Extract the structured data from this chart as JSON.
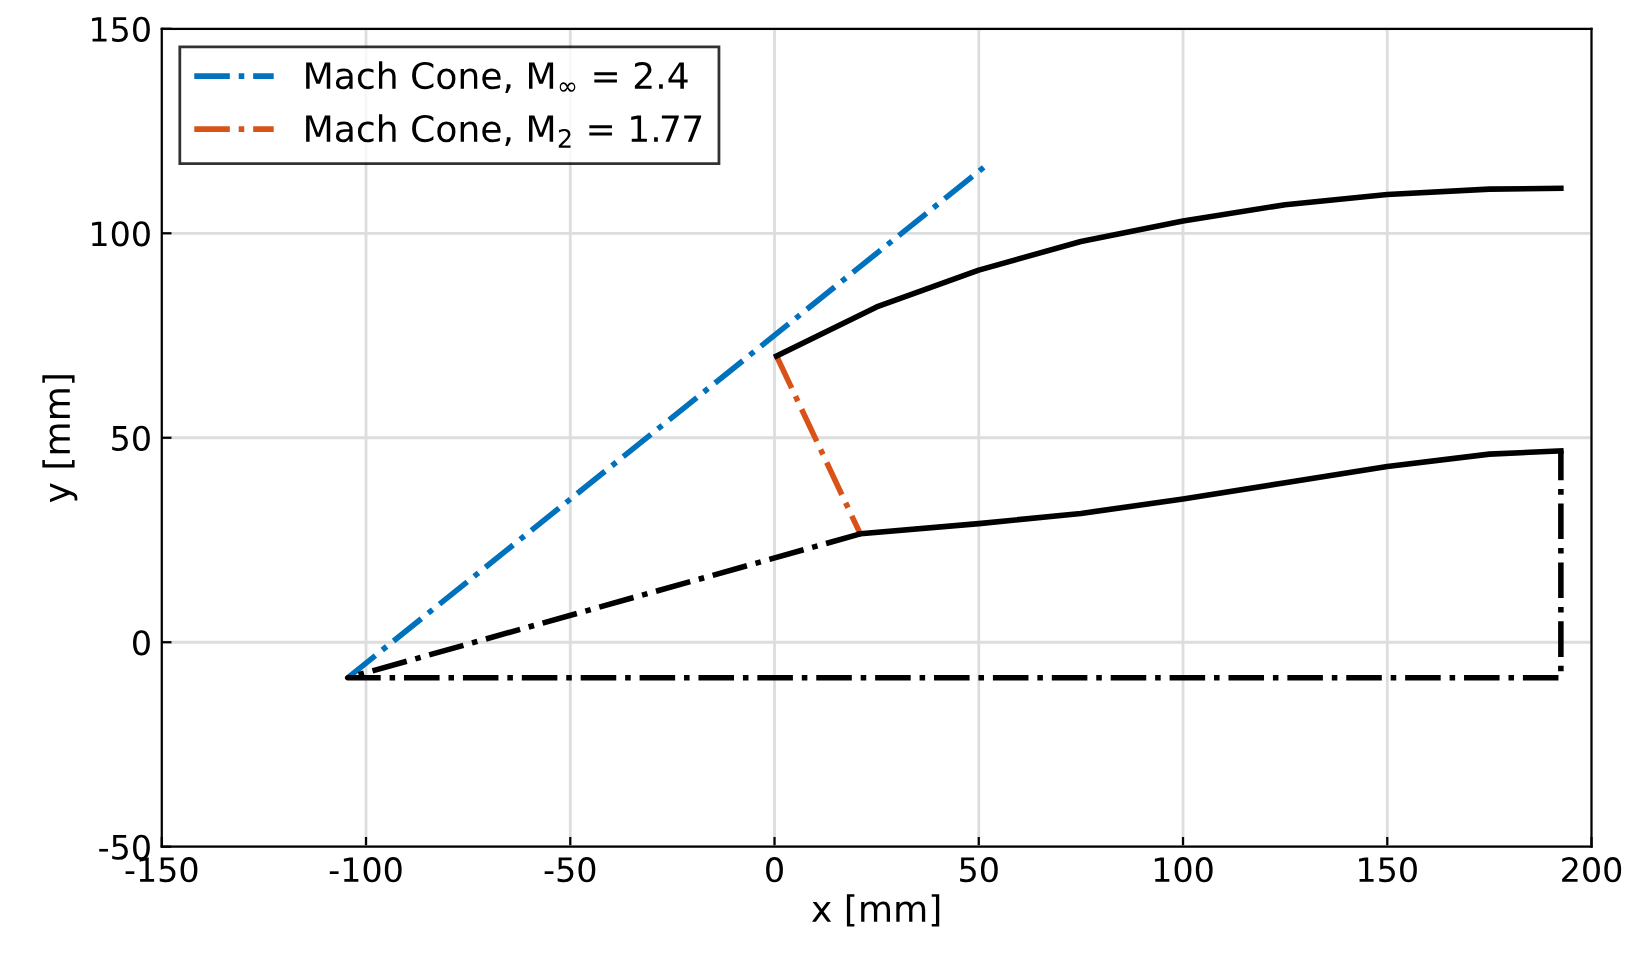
{
  "chart_data": {
    "type": "line",
    "xlabel": "x [mm]",
    "ylabel": "y [mm]",
    "xlim": [
      -150,
      200
    ],
    "ylim": [
      -50,
      150
    ],
    "xticks": [
      -150,
      -100,
      -50,
      0,
      50,
      100,
      150,
      200
    ],
    "yticks": [
      -50,
      0,
      50,
      100,
      150
    ],
    "grid": true,
    "legend": "top left",
    "series": [
      {
        "name": "Mach Cone, M$_{∞}$ = 2.4",
        "color": "#0072bd",
        "line_style": "dashdot",
        "x": [
          -104.5,
          51.7
        ],
        "values": [
          -8.7,
          116.5
        ]
      },
      {
        "name": "Mach Cone, M$_{2}$ = 1.77",
        "color": "#d95319",
        "line_style": "dashdot",
        "x": [
          0.5,
          21
        ],
        "values": [
          70,
          26.5
        ]
      },
      {
        "color": "#000000",
        "line_style": "solid",
        "x": [
          0.5,
          25,
          50,
          75,
          100,
          125,
          150,
          175,
          192.5
        ],
        "values": [
          70,
          82,
          91,
          98,
          103,
          107,
          109.5,
          110.8,
          111
        ]
      },
      {
        "color": "#000000",
        "line_style": "solid",
        "x": [
          21,
          50,
          75,
          100,
          125,
          150,
          175,
          192.5
        ],
        "values": [
          26.5,
          29,
          31.5,
          35,
          39,
          43,
          46,
          46.8
        ]
      },
      {
        "color": "#000000",
        "line_style": "dashdot",
        "x": [
          21,
          -104.5,
          192.5,
          192.5
        ],
        "values": [
          26.5,
          -8.7,
          -8.7,
          46.8
        ]
      }
    ]
  }
}
